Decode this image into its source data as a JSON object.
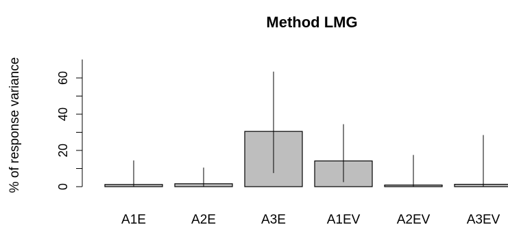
{
  "chart_data": {
    "type": "bar",
    "title": "Method LMG",
    "xlabel": "",
    "ylabel": "% of response variance",
    "categories": [
      "A1E",
      "A2E",
      "A3E",
      "A1EV",
      "A2EV",
      "A3EV"
    ],
    "values": [
      1.2,
      1.6,
      30.5,
      14.2,
      0.9,
      1.3
    ],
    "ci_lower": [
      0.0,
      0.0,
      7.5,
      2.5,
      0.0,
      0.0
    ],
    "ci_upper": [
      14.5,
      10.5,
      63.5,
      34.5,
      17.5,
      28.5
    ],
    "yticks": [
      0,
      20,
      40,
      60
    ],
    "ylim": [
      0,
      70
    ],
    "grid": false,
    "colors": {
      "bar_fill": "#bebebe",
      "bar_stroke": "#000000",
      "ci_line": "#000000"
    }
  }
}
